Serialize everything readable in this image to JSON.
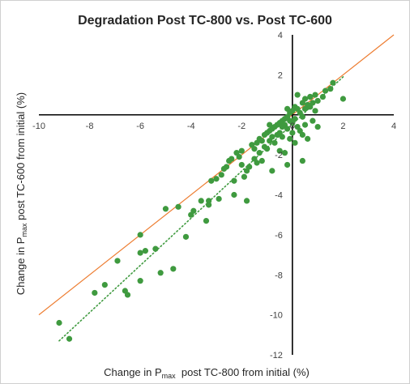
{
  "chart_data": {
    "type": "scatter",
    "title": "Degradation Post TC-800 vs. Post TC-600",
    "xlabel": {
      "prefix": "Change in P",
      "sub": "max",
      "suffix": "  post TC-800 from initial (%)"
    },
    "ylabel": {
      "prefix": "Change in P",
      "sub": "max",
      "suffix": " post TC-600 from initial (%)"
    },
    "xlim": [
      -10,
      4
    ],
    "ylim": [
      -12,
      4
    ],
    "xticks": [
      -10,
      -8,
      -6,
      -4,
      -2,
      0,
      2,
      4
    ],
    "yticks": [
      -12,
      -10,
      -8,
      -6,
      -4,
      -2,
      0,
      2,
      4
    ],
    "x_tick_labels": [
      "-10",
      "-8",
      "-6",
      "-4",
      "-2",
      "0",
      "2",
      "4"
    ],
    "y_tick_labels": [
      "-12",
      "-10",
      "-8",
      "-6",
      "-4",
      "-2",
      "",
      "2",
      "4"
    ],
    "grid": false,
    "colors": {
      "points": "#3f9a3f",
      "reference_line": "#ed7d31",
      "trendline": "#3f9a3f",
      "axes": "#000000"
    },
    "reference_line": {
      "style": "solid",
      "points": [
        [
          -10,
          -10
        ],
        [
          4,
          4
        ]
      ]
    },
    "trendline": {
      "style": "dotted",
      "points": [
        [
          -9.2,
          -11.3
        ],
        [
          2,
          1.9
        ]
      ]
    },
    "series": [
      {
        "points": [
          [
            -9.2,
            -10.4
          ],
          [
            -8.8,
            -11.2
          ],
          [
            -7.8,
            -8.9
          ],
          [
            -7.4,
            -8.5
          ],
          [
            -6.9,
            -7.3
          ],
          [
            -6.6,
            -8.8
          ],
          [
            -6.5,
            -9.0
          ],
          [
            -6.0,
            -6.0
          ],
          [
            -6.0,
            -6.9
          ],
          [
            -6.0,
            -8.3
          ],
          [
            -5.8,
            -6.8
          ],
          [
            -5.4,
            -6.7
          ],
          [
            -5.2,
            -7.9
          ],
          [
            -5.0,
            -4.7
          ],
          [
            -4.7,
            -7.7
          ],
          [
            -4.5,
            -4.6
          ],
          [
            -4.2,
            -6.1
          ],
          [
            -4.0,
            -5.0
          ],
          [
            -3.9,
            -4.8
          ],
          [
            -3.6,
            -4.3
          ],
          [
            -3.4,
            -5.3
          ],
          [
            -3.3,
            -4.3
          ],
          [
            -3.3,
            -4.5
          ],
          [
            -3.2,
            -3.3
          ],
          [
            -3.0,
            -3.2
          ],
          [
            -2.9,
            -4.2
          ],
          [
            -2.8,
            -3.0
          ],
          [
            -2.7,
            -2.7
          ],
          [
            -2.6,
            -2.6
          ],
          [
            -2.5,
            -2.3
          ],
          [
            -2.4,
            -2.2
          ],
          [
            -2.3,
            -3.3
          ],
          [
            -2.3,
            -4.0
          ],
          [
            -2.2,
            -1.9
          ],
          [
            -2.1,
            -2.1
          ],
          [
            -2.0,
            -1.8
          ],
          [
            -2.0,
            -2.5
          ],
          [
            -1.9,
            -3.1
          ],
          [
            -1.8,
            -2.8
          ],
          [
            -1.8,
            -4.3
          ],
          [
            -1.7,
            -2.6
          ],
          [
            -1.6,
            -1.5
          ],
          [
            -1.5,
            -1.7
          ],
          [
            -1.5,
            -2.2
          ],
          [
            -1.4,
            -1.4
          ],
          [
            -1.4,
            -2.4
          ],
          [
            -1.3,
            -1.2
          ],
          [
            -1.3,
            -1.9
          ],
          [
            -1.2,
            -1.3
          ],
          [
            -1.2,
            -2.3
          ],
          [
            -1.1,
            -1.0
          ],
          [
            -1.1,
            -1.6
          ],
          [
            -1.0,
            -0.9
          ],
          [
            -1.0,
            -1.7
          ],
          [
            -0.9,
            -0.8
          ],
          [
            -0.9,
            -1.3
          ],
          [
            -0.8,
            -0.7
          ],
          [
            -0.8,
            -1.1
          ],
          [
            -0.8,
            -2.8
          ],
          [
            -0.7,
            -0.6
          ],
          [
            -0.7,
            -1.4
          ],
          [
            -0.6,
            -0.5
          ],
          [
            -0.6,
            -1.0
          ],
          [
            -0.5,
            -0.4
          ],
          [
            -0.5,
            -0.9
          ],
          [
            -0.5,
            -1.8
          ],
          [
            -0.4,
            -0.3
          ],
          [
            -0.4,
            -0.6
          ],
          [
            -0.4,
            -1.1
          ],
          [
            -0.3,
            -0.2
          ],
          [
            -0.3,
            -0.5
          ],
          [
            -0.3,
            -1.9
          ],
          [
            -0.2,
            -0.1
          ],
          [
            -0.2,
            -0.7
          ],
          [
            -0.2,
            -2.5
          ],
          [
            -0.1,
            0.1
          ],
          [
            -0.1,
            -0.3
          ],
          [
            -0.1,
            -1.2
          ],
          [
            0.0,
            0.2
          ],
          [
            0.0,
            -0.4
          ],
          [
            0.0,
            -0.9
          ],
          [
            0.1,
            0.4
          ],
          [
            0.1,
            -0.2
          ],
          [
            0.1,
            -1.4
          ],
          [
            0.2,
            1.0
          ],
          [
            0.2,
            0.3
          ],
          [
            0.2,
            -0.6
          ],
          [
            0.3,
            0.1
          ],
          [
            0.3,
            -0.8
          ],
          [
            0.4,
            0.6
          ],
          [
            0.4,
            -0.1
          ],
          [
            0.4,
            -1.0
          ],
          [
            0.4,
            -2.3
          ],
          [
            0.5,
            0.8
          ],
          [
            0.5,
            0.3
          ],
          [
            0.5,
            -0.5
          ],
          [
            0.6,
            0.5
          ],
          [
            0.6,
            -1.2
          ],
          [
            0.7,
            0.9
          ],
          [
            0.7,
            0.4
          ],
          [
            0.8,
            0.6
          ],
          [
            0.8,
            -0.3
          ],
          [
            0.9,
            1.0
          ],
          [
            0.9,
            0.2
          ],
          [
            1.0,
            0.7
          ],
          [
            1.0,
            -0.6
          ],
          [
            1.2,
            0.9
          ],
          [
            1.3,
            1.2
          ],
          [
            1.5,
            1.3
          ],
          [
            1.6,
            1.6
          ],
          [
            2.0,
            0.8
          ],
          [
            0.7,
            0.9
          ],
          [
            -0.2,
            0.3
          ],
          [
            -0.9,
            -0.5
          ]
        ]
      }
    ]
  }
}
